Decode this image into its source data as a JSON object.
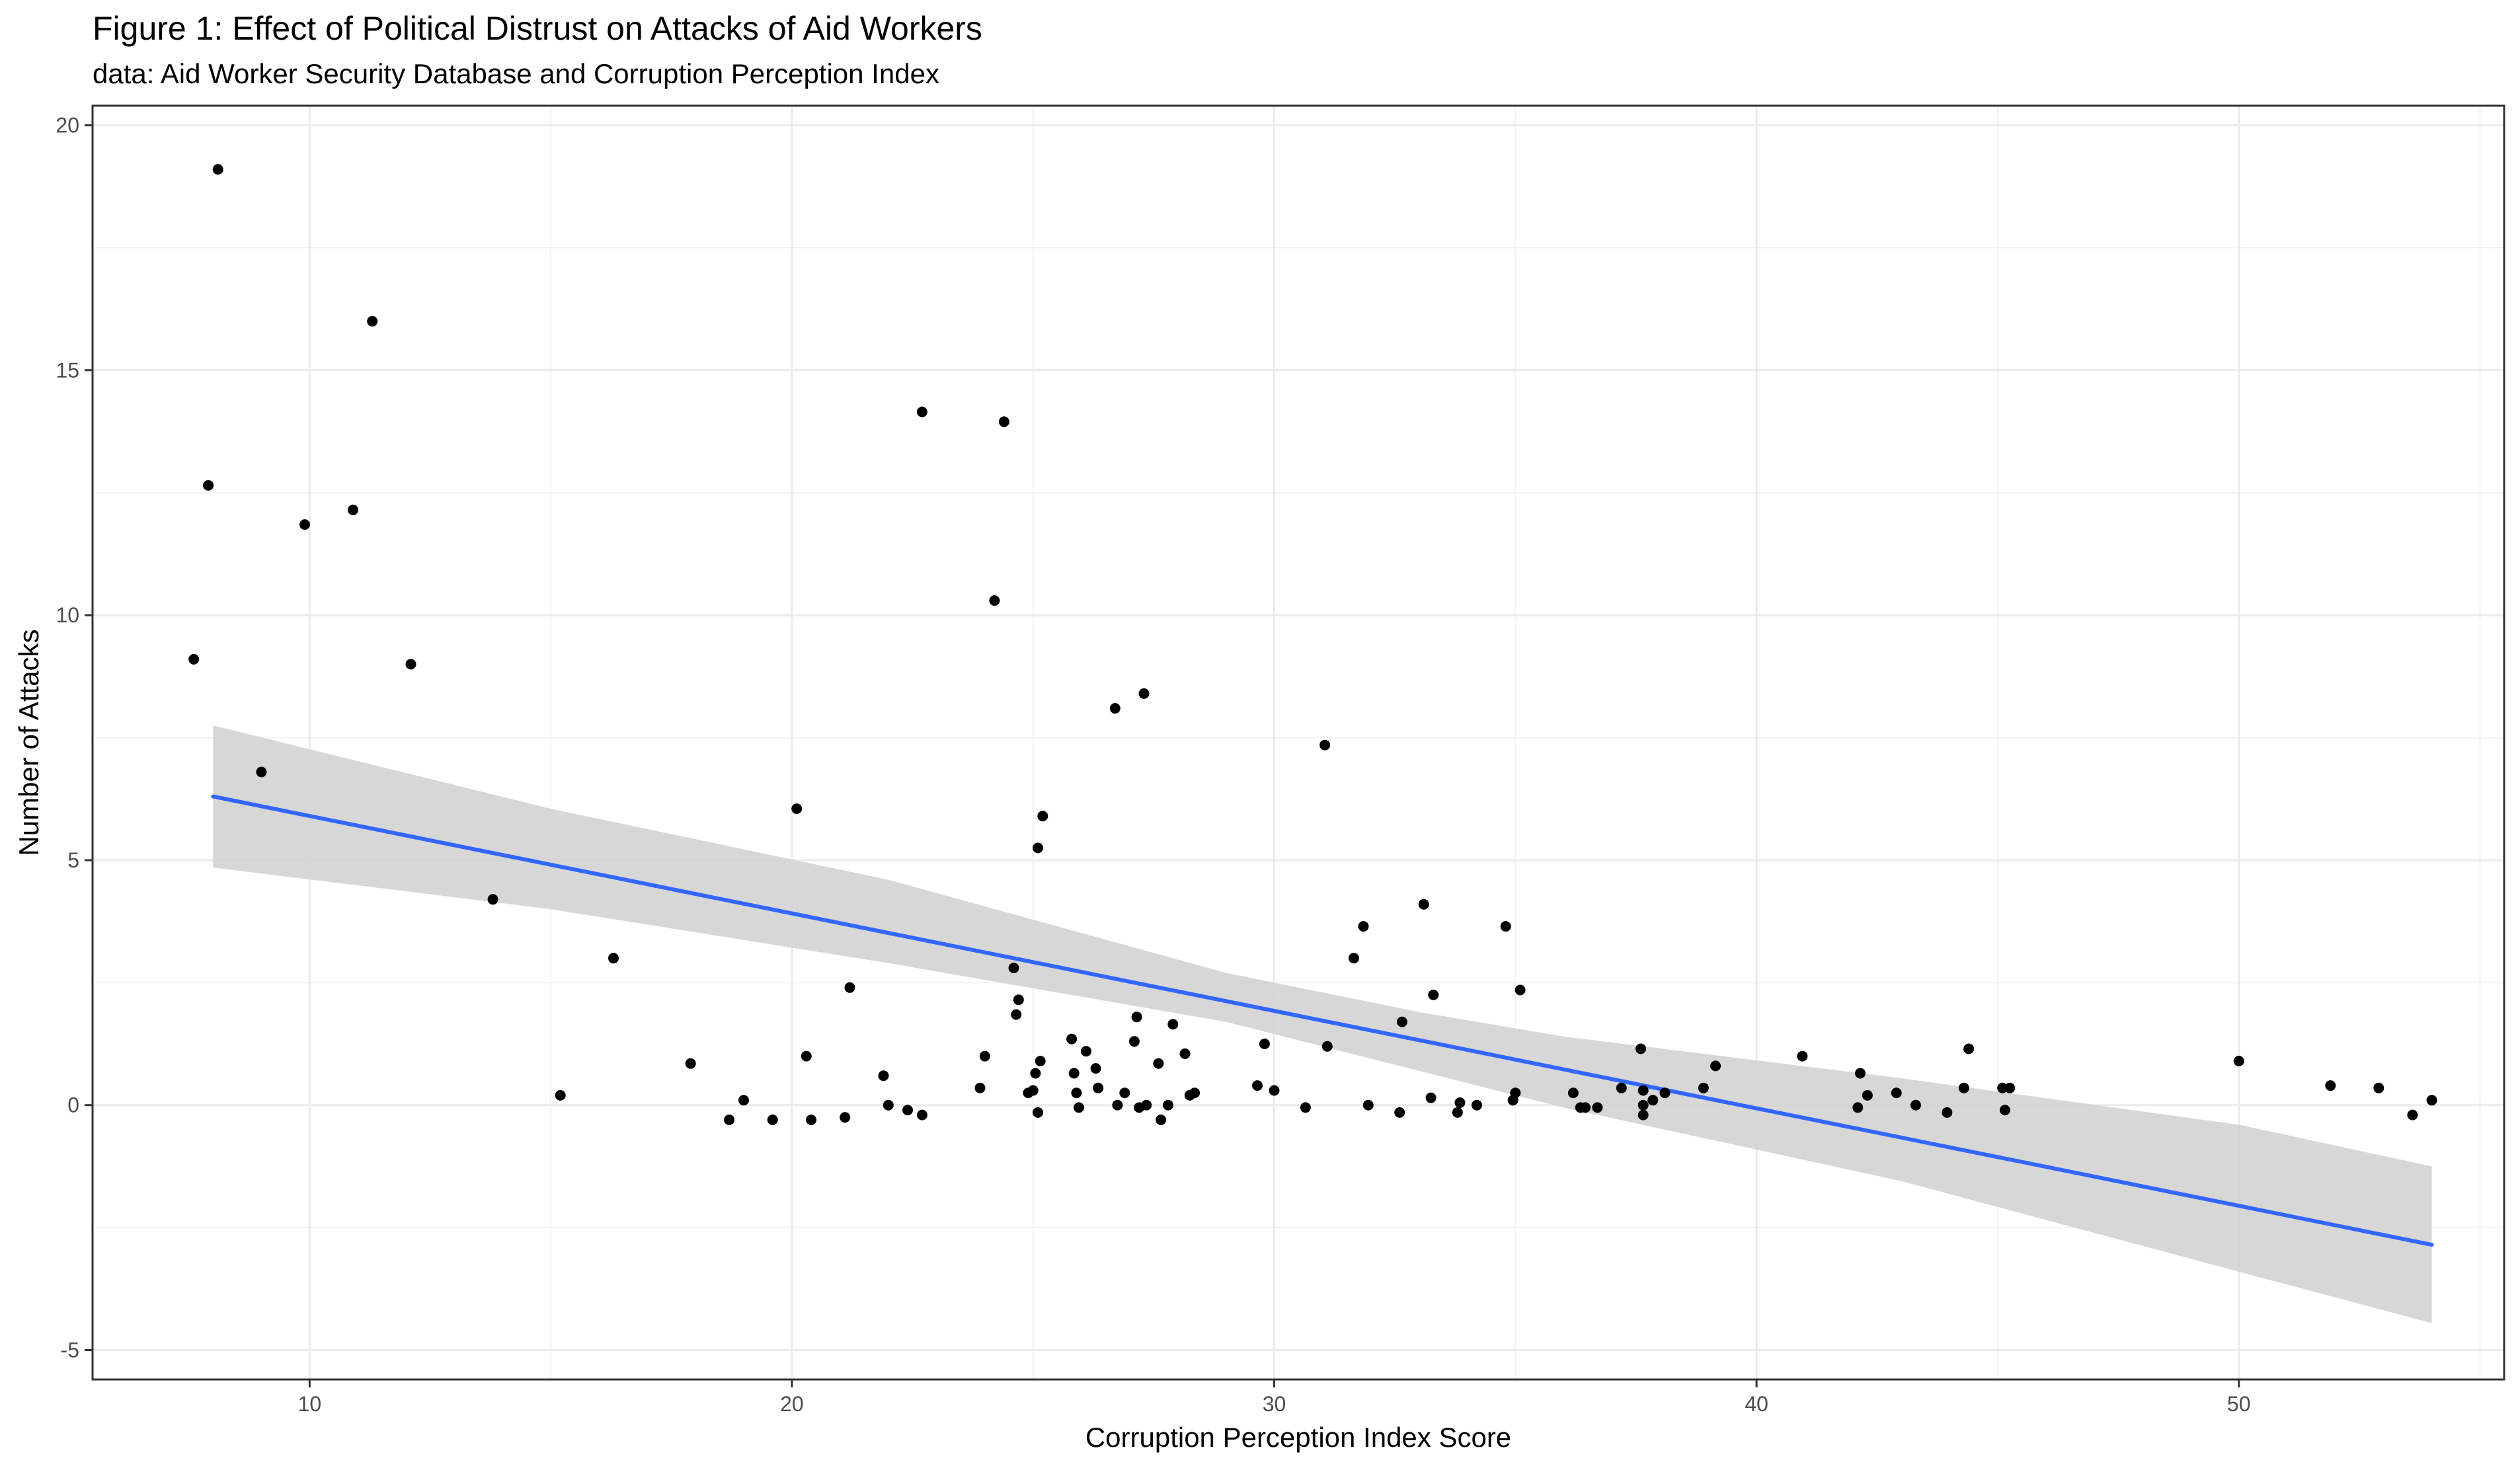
{
  "chart_data": {
    "type": "scatter",
    "title": "Figure 1: Effect of Political Distrust on Attacks of Aid Workers",
    "subtitle": "data: Aid Worker Security Database and Corruption Perception Index",
    "xlabel": "Corruption Perception Index Score",
    "ylabel": "Number of Attacks",
    "xlim": [
      5.5,
      55.5
    ],
    "ylim": [
      -5.6,
      20.4
    ],
    "x_ticks": [
      10,
      20,
      30,
      40,
      50
    ],
    "y_ticks": [
      -5,
      0,
      5,
      10,
      15,
      20
    ],
    "x_tick_labels": [
      "10",
      "20",
      "30",
      "40",
      "50"
    ],
    "y_tick_labels": [
      "-5",
      "0",
      "5",
      "10",
      "15",
      "20"
    ],
    "grid": true,
    "legend": "none",
    "colors": {
      "points": "#000000",
      "fit_line": "#3366ff",
      "confidence_band": "#d3d3d3",
      "grid_major": "#ebebeb",
      "grid_minor": "#f3f3f3",
      "panel_border": "#333333"
    },
    "points": [
      [
        7.6,
        9.1
      ],
      [
        7.9,
        12.65
      ],
      [
        8.1,
        19.1
      ],
      [
        9.0,
        6.8
      ],
      [
        9.9,
        11.85
      ],
      [
        10.9,
        12.15
      ],
      [
        11.3,
        16.0
      ],
      [
        12.1,
        9.0
      ],
      [
        13.8,
        4.2
      ],
      [
        15.2,
        0.2
      ],
      [
        16.3,
        3.0
      ],
      [
        17.9,
        0.85
      ],
      [
        18.7,
        -0.3
      ],
      [
        19.0,
        0.1
      ],
      [
        19.6,
        -0.3
      ],
      [
        20.1,
        6.05
      ],
      [
        20.3,
        1.0
      ],
      [
        20.4,
        -0.3
      ],
      [
        21.1,
        -0.25
      ],
      [
        21.2,
        2.4
      ],
      [
        21.9,
        0.6
      ],
      [
        22.0,
        0.0
      ],
      [
        22.4,
        -0.1
      ],
      [
        22.7,
        -0.2
      ],
      [
        22.7,
        14.15
      ],
      [
        23.9,
        0.35
      ],
      [
        24.0,
        1.0
      ],
      [
        24.2,
        10.3
      ],
      [
        24.4,
        13.95
      ],
      [
        24.6,
        2.8
      ],
      [
        24.7,
        2.15
      ],
      [
        24.65,
        1.85
      ],
      [
        24.9,
        0.25
      ],
      [
        25.0,
        0.3
      ],
      [
        25.05,
        0.65
      ],
      [
        25.1,
        -0.15
      ],
      [
        25.15,
        0.9
      ],
      [
        25.1,
        5.25
      ],
      [
        25.2,
        5.9
      ],
      [
        25.8,
        1.35
      ],
      [
        25.85,
        0.65
      ],
      [
        25.9,
        0.25
      ],
      [
        25.95,
        -0.05
      ],
      [
        26.1,
        1.1
      ],
      [
        26.3,
        0.75
      ],
      [
        26.35,
        0.35
      ],
      [
        26.7,
        8.1
      ],
      [
        26.75,
        0.0
      ],
      [
        26.9,
        0.25
      ],
      [
        27.1,
        1.3
      ],
      [
        27.15,
        1.8
      ],
      [
        27.2,
        -0.05
      ],
      [
        27.3,
        8.4
      ],
      [
        27.35,
        0.0
      ],
      [
        27.6,
        0.85
      ],
      [
        27.65,
        -0.3
      ],
      [
        27.8,
        0.0
      ],
      [
        27.9,
        1.65
      ],
      [
        28.15,
        1.05
      ],
      [
        28.25,
        0.2
      ],
      [
        28.35,
        0.25
      ],
      [
        29.65,
        0.4
      ],
      [
        29.8,
        1.25
      ],
      [
        30.0,
        0.3
      ],
      [
        30.65,
        -0.05
      ],
      [
        31.05,
        7.35
      ],
      [
        31.1,
        1.2
      ],
      [
        31.65,
        3.0
      ],
      [
        31.85,
        3.65
      ],
      [
        31.95,
        0.0
      ],
      [
        32.6,
        -0.15
      ],
      [
        32.65,
        1.7
      ],
      [
        33.1,
        4.1
      ],
      [
        33.25,
        0.15
      ],
      [
        33.3,
        2.25
      ],
      [
        33.8,
        -0.15
      ],
      [
        33.85,
        0.05
      ],
      [
        34.2,
        0.0
      ],
      [
        34.8,
        3.65
      ],
      [
        34.95,
        0.1
      ],
      [
        35.0,
        0.25
      ],
      [
        35.1,
        2.35
      ],
      [
        36.2,
        0.25
      ],
      [
        36.35,
        -0.05
      ],
      [
        36.45,
        -0.05
      ],
      [
        36.7,
        -0.05
      ],
      [
        37.2,
        0.35
      ],
      [
        37.6,
        1.15
      ],
      [
        37.65,
        0.3
      ],
      [
        37.65,
        0.0
      ],
      [
        37.65,
        -0.2
      ],
      [
        37.85,
        0.1
      ],
      [
        38.1,
        0.25
      ],
      [
        38.9,
        0.35
      ],
      [
        39.15,
        0.8
      ],
      [
        40.95,
        1.0
      ],
      [
        42.1,
        -0.05
      ],
      [
        42.15,
        0.65
      ],
      [
        42.3,
        0.2
      ],
      [
        42.9,
        0.25
      ],
      [
        43.3,
        0.0
      ],
      [
        43.95,
        -0.15
      ],
      [
        44.3,
        0.35
      ],
      [
        44.4,
        1.15
      ],
      [
        45.1,
        0.35
      ],
      [
        45.15,
        -0.1
      ],
      [
        45.25,
        0.35
      ],
      [
        50.0,
        0.9
      ],
      [
        51.9,
        0.4
      ],
      [
        52.9,
        0.35
      ],
      [
        53.6,
        -0.2
      ],
      [
        54.0,
        0.1
      ]
    ],
    "fit_line": {
      "method": "linear",
      "x": [
        8.0,
        54.0
      ],
      "y": [
        6.3,
        -2.85
      ]
    },
    "confidence_band": {
      "x": [
        8.0,
        15.0,
        22.0,
        29.0,
        33.0,
        36.0,
        43.0,
        50.0,
        54.0
      ],
      "upper": [
        7.75,
        6.05,
        4.6,
        2.7,
        1.9,
        1.4,
        0.55,
        -0.4,
        -1.25
      ],
      "lower": [
        4.85,
        4.0,
        2.9,
        1.7,
        0.7,
        -0.05,
        -1.55,
        -3.4,
        -4.45
      ]
    }
  }
}
